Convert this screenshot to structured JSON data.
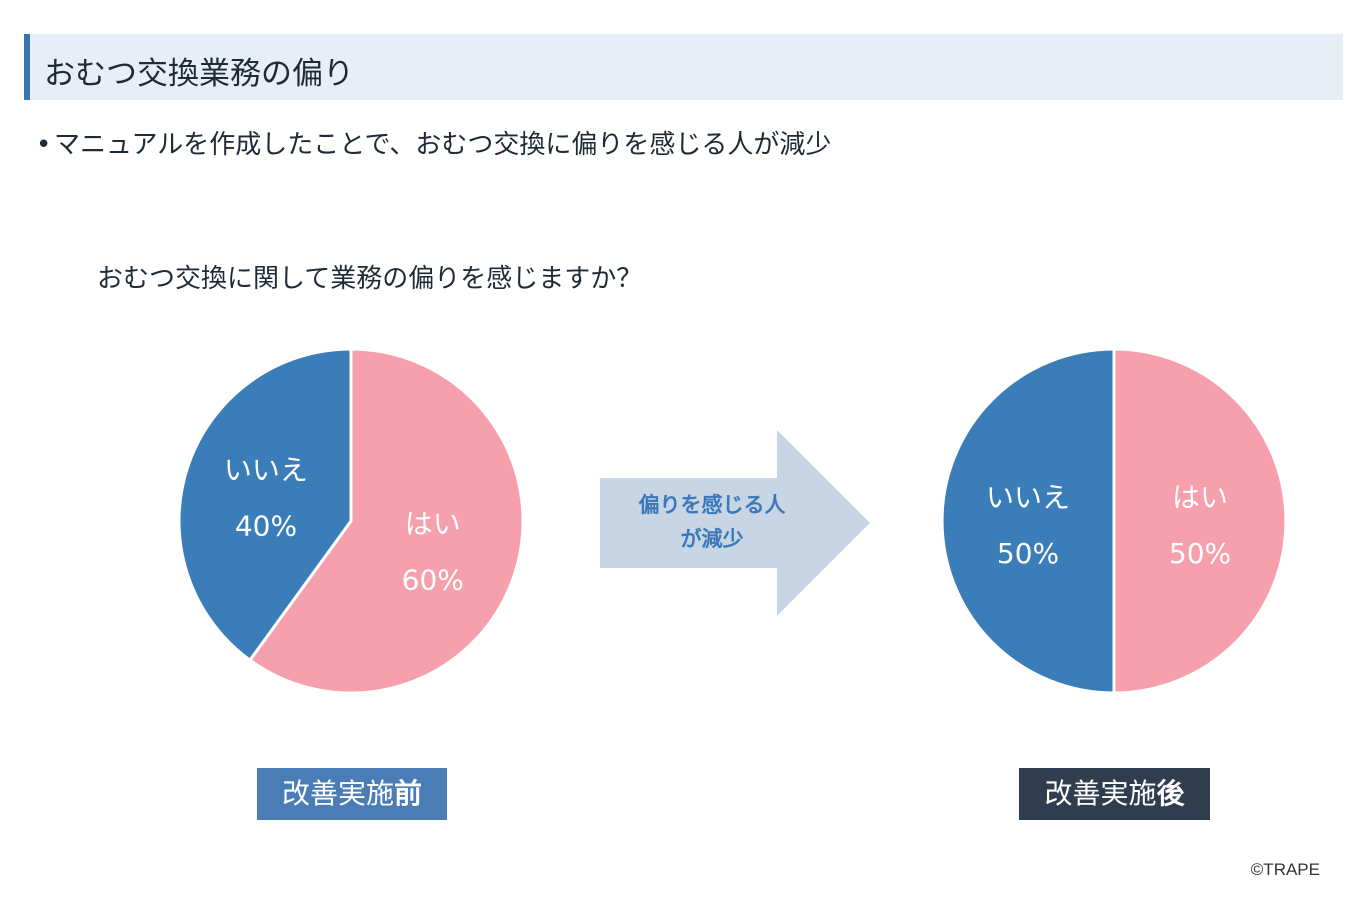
{
  "header": {
    "title": "おむつ交換業務の偏り"
  },
  "bullet": {
    "marker": "•",
    "text": "マニュアルを作成したことで、おむつ交換に偏りを感じる人が減少"
  },
  "question": "おむつ交換に関して業務の偏りを感じますか？",
  "arrow": {
    "line1": "偏りを感じる人",
    "line2": "が減少",
    "color": "#c8d5e5"
  },
  "captions": {
    "before": {
      "main": "改善実施",
      "bold": "前",
      "color": "#4a7cb6"
    },
    "after": {
      "main": "改善実施",
      "bold": "後",
      "color": "#2f3d4e"
    }
  },
  "credit": "©TRAPE",
  "colors": {
    "yes": "#f6a0ae",
    "no": "#3a7db8"
  },
  "chart_data": [
    {
      "type": "pie",
      "caption": "改善実施前",
      "slices": [
        {
          "label": "はい",
          "value": 60,
          "display": "60%"
        },
        {
          "label": "いいえ",
          "value": 40,
          "display": "40%"
        }
      ]
    },
    {
      "type": "pie",
      "caption": "改善実施後",
      "slices": [
        {
          "label": "はい",
          "value": 50,
          "display": "50%"
        },
        {
          "label": "いいえ",
          "value": 50,
          "display": "50%"
        }
      ]
    }
  ]
}
